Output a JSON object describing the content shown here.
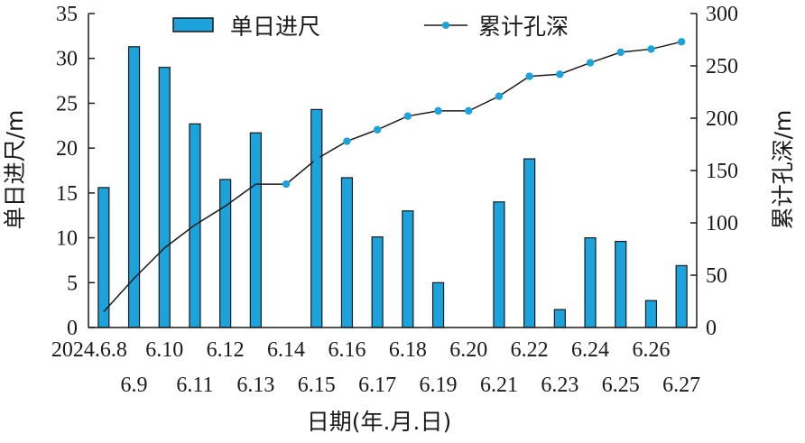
{
  "chart_data": {
    "type": "bar",
    "categories": [
      "2024.6.8",
      "6.9",
      "6.10",
      "6.11",
      "6.12",
      "6.13",
      "6.14",
      "6.15",
      "6.16",
      "6.17",
      "6.18",
      "6.19",
      "6.20",
      "6.21",
      "6.22",
      "6.23",
      "6.24",
      "6.25",
      "6.26",
      "6.27"
    ],
    "series": [
      {
        "name": "单日进尺",
        "kind": "bar",
        "axis": "left",
        "color": "#1ca3dc",
        "values": [
          15.6,
          31.3,
          29.0,
          22.7,
          16.5,
          21.7,
          0,
          24.3,
          16.7,
          10.1,
          13.0,
          5.0,
          0,
          14.0,
          18.8,
          2.0,
          10.0,
          9.6,
          3.0,
          6.9
        ]
      },
      {
        "name": "累计孔深",
        "kind": "line",
        "axis": "right",
        "color": "#1ca3dc",
        "line_color": "#1a1a1a",
        "values": [
          15,
          47,
          76,
          98,
          116,
          137,
          137,
          161,
          178,
          189,
          202,
          207,
          207,
          221,
          240,
          242,
          253,
          263,
          266,
          273
        ],
        "markers_from_index": 6
      }
    ],
    "title": "",
    "xlabel": "日期(年.月.日)",
    "ylabel_left": "单日进尺/m",
    "ylabel_right": "累计孔深/m",
    "ylim_left": [
      0,
      35
    ],
    "ylim_right": [
      0,
      300
    ],
    "yticks_left": [
      0,
      5,
      10,
      15,
      20,
      25,
      30,
      35
    ],
    "yticks_right": [
      0,
      50,
      100,
      150,
      200,
      250,
      300
    ],
    "grid": false,
    "legend": "top",
    "x_tick_rows": "alternating"
  }
}
